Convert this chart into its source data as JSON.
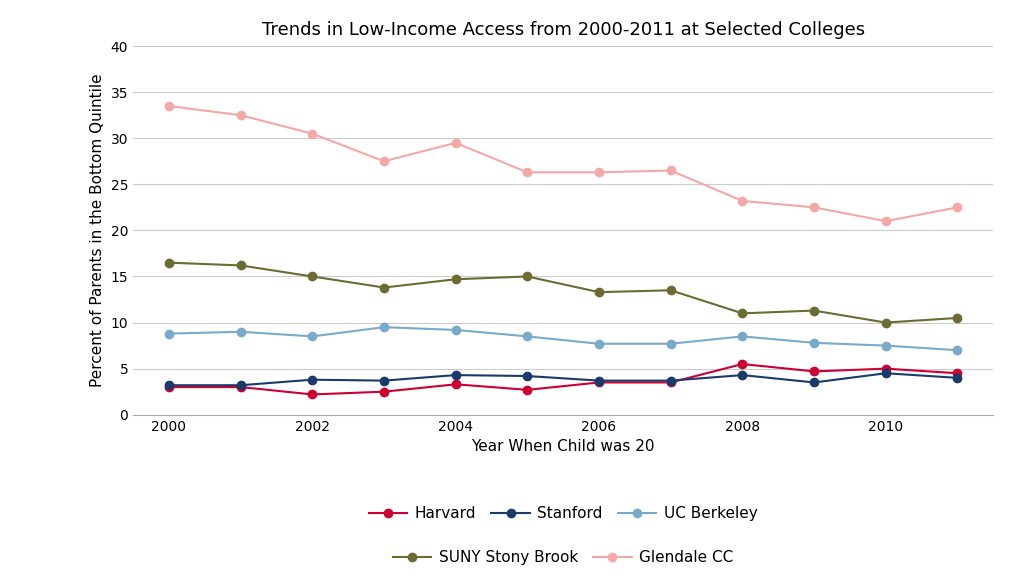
{
  "title": "Trends in Low-Income Access from 2000-2011 at Selected Colleges",
  "xlabel": "Year When Child was 20",
  "ylabel": "Percent of Parents in the Bottom Quintile",
  "years": [
    2000,
    2001,
    2002,
    2003,
    2004,
    2005,
    2006,
    2007,
    2008,
    2009,
    2010,
    2011
  ],
  "series_order": [
    "Harvard",
    "Stanford",
    "UC Berkeley",
    "SUNY Stony Brook",
    "Glendale CC"
  ],
  "series": {
    "Harvard": {
      "values": [
        3.0,
        3.0,
        2.2,
        2.5,
        3.3,
        2.7,
        3.5,
        3.5,
        5.5,
        4.7,
        5.0,
        4.5
      ],
      "color": "#cc0033",
      "marker": "o",
      "linewidth": 1.5,
      "markersize": 6
    },
    "Stanford": {
      "values": [
        3.2,
        3.2,
        3.8,
        3.7,
        4.3,
        4.2,
        3.7,
        3.7,
        4.3,
        3.5,
        4.5,
        4.0
      ],
      "color": "#1a3a6b",
      "marker": "o",
      "linewidth": 1.5,
      "markersize": 6
    },
    "UC Berkeley": {
      "values": [
        8.8,
        9.0,
        8.5,
        9.5,
        9.2,
        8.5,
        7.7,
        7.7,
        8.5,
        7.8,
        7.5,
        7.0
      ],
      "color": "#7aaac8",
      "marker": "o",
      "linewidth": 1.5,
      "markersize": 6
    },
    "SUNY Stony Brook": {
      "values": [
        16.5,
        16.2,
        15.0,
        13.8,
        14.7,
        15.0,
        13.3,
        13.5,
        11.0,
        11.3,
        10.0,
        10.5
      ],
      "color": "#6b6b33",
      "marker": "o",
      "linewidth": 1.5,
      "markersize": 6
    },
    "Glendale CC": {
      "values": [
        33.5,
        32.5,
        30.5,
        27.5,
        29.5,
        26.3,
        26.3,
        26.5,
        23.2,
        22.5,
        21.0,
        22.5
      ],
      "color": "#f4a8a8",
      "marker": "o",
      "linewidth": 1.5,
      "markersize": 6
    }
  },
  "ylim": [
    0,
    40
  ],
  "yticks": [
    0,
    5,
    10,
    15,
    20,
    25,
    30,
    35,
    40
  ],
  "xlim": [
    1999.5,
    2011.5
  ],
  "xticks": [
    2000,
    2002,
    2004,
    2006,
    2008,
    2010
  ],
  "background_color": "#ffffff",
  "grid_color": "#cccccc",
  "title_fontsize": 13,
  "label_fontsize": 11,
  "tick_fontsize": 10,
  "legend_fontsize": 11
}
